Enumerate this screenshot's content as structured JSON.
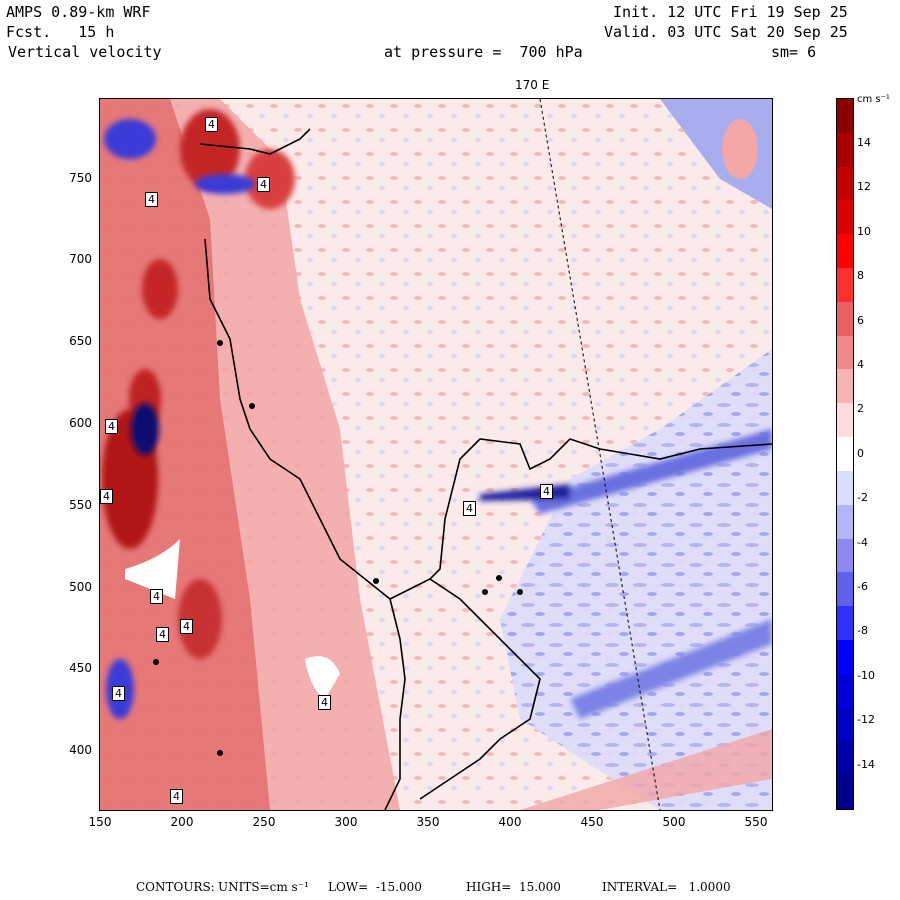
{
  "header": {
    "model": "AMPS 0.89-km WRF",
    "forecast_label": "Fcst.",
    "forecast_hours": "15 h",
    "field": "Vertical velocity",
    "init": "Init. 12 UTC Fri 19 Sep 25",
    "valid": "Valid. 03 UTC Sat 20 Sep 25",
    "pressure": "at pressure =  700 hPa",
    "smoothing": "sm= 6",
    "meridian_label": "170 E"
  },
  "axes": {
    "x_ticks": [
      "150",
      "200",
      "250",
      "300",
      "350",
      "400",
      "450",
      "500",
      "550"
    ],
    "y_ticks": [
      "750",
      "700",
      "650",
      "600",
      "550",
      "500",
      "450",
      "400"
    ]
  },
  "colorbar": {
    "units": "cm s⁻¹",
    "labels": [
      "14",
      "12",
      "10",
      "8",
      "6",
      "4",
      "2",
      "0",
      "-2",
      "-4",
      "-6",
      "-8",
      "-10",
      "-12",
      "-14"
    ],
    "colors": [
      "#8b0000",
      "#a80000",
      "#c40000",
      "#dc0000",
      "#ff0000",
      "#ff3030",
      "#e86060",
      "#f08a8a",
      "#f8b4b4",
      "#fcdcdc",
      "#ffffff",
      "#dcdcfc",
      "#b4b4f8",
      "#8a8af0",
      "#6060e8",
      "#3030ff",
      "#0000ff",
      "#0000dc",
      "#0000c4",
      "#0000a8",
      "#00008b"
    ]
  },
  "contour_labels": [
    "4",
    "4",
    "4",
    "4",
    "4",
    "4",
    "4",
    "4",
    "4",
    "4",
    "4",
    "4",
    "4"
  ],
  "footer": {
    "prefix": "CONTOURS:",
    "units_label": "UNITS=cm s⁻¹",
    "low": "LOW=  -15.000",
    "high": "HIGH=  15.000",
    "interval": "INTERVAL=   1.0000"
  },
  "map": {
    "background": "#fbeaea",
    "warm": "#f2a6a6",
    "hot": "#d83a3a",
    "cool": "#cfd2f5",
    "cold": "#3a3ad8",
    "coast": "#000000"
  }
}
